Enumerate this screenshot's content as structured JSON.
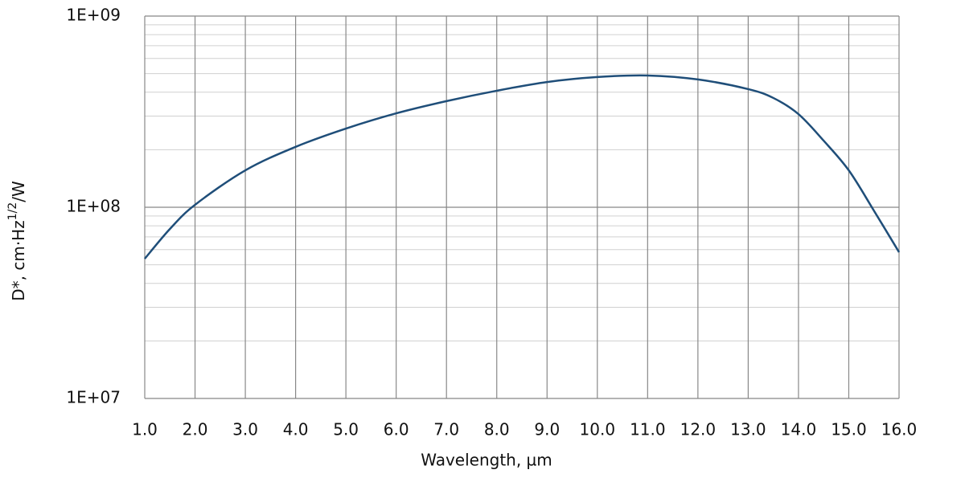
{
  "chart_data": {
    "type": "line",
    "x_label": "Wavelength, µm",
    "y_label": {
      "text": "D*, cm·Hz",
      "superscript": "1/2",
      "suffix": "/W"
    },
    "x": [
      1.0,
      1.5,
      2.0,
      3.0,
      4.0,
      5.0,
      6.0,
      7.0,
      8.0,
      9.0,
      10.0,
      11.0,
      12.0,
      13.0,
      13.5,
      14.0,
      14.5,
      15.0,
      15.5,
      16.0
    ],
    "values": [
      53800000,
      77000000,
      103000000,
      156000000,
      207000000,
      258000000,
      310000000,
      359000000,
      407000000,
      452000000,
      480000000,
      489000000,
      466000000,
      415000000,
      373000000,
      307000000,
      223000000,
      156000000,
      96000000,
      58200000
    ],
    "color": "#1f4e79",
    "xlim": [
      1,
      16
    ],
    "xticks": [
      {
        "value": 1,
        "label": "1.0"
      },
      {
        "value": 2,
        "label": "2.0"
      },
      {
        "value": 3,
        "label": "3.0"
      },
      {
        "value": 4,
        "label": "4.0"
      },
      {
        "value": 5,
        "label": "5.0"
      },
      {
        "value": 6,
        "label": "6.0"
      },
      {
        "value": 7,
        "label": "7.0"
      },
      {
        "value": 8,
        "label": "8.0"
      },
      {
        "value": 9,
        "label": "9.0"
      },
      {
        "value": 10,
        "label": "10.0"
      },
      {
        "value": 11,
        "label": "11.0"
      },
      {
        "value": 12,
        "label": "12.0"
      },
      {
        "value": 13,
        "label": "13.0"
      },
      {
        "value": 14,
        "label": "14.0"
      },
      {
        "value": 15,
        "label": "15.0"
      },
      {
        "value": 16,
        "label": "16.0"
      }
    ],
    "ylim": [
      10000000,
      1000000000
    ],
    "yticks": [
      {
        "value": 10000000,
        "label": "1E+07"
      },
      {
        "value": 100000000,
        "label": "1E+08"
      },
      {
        "value": 1000000000,
        "label": "1E+09"
      }
    ],
    "y_log": true,
    "grid": true,
    "minor_grid": true
  }
}
